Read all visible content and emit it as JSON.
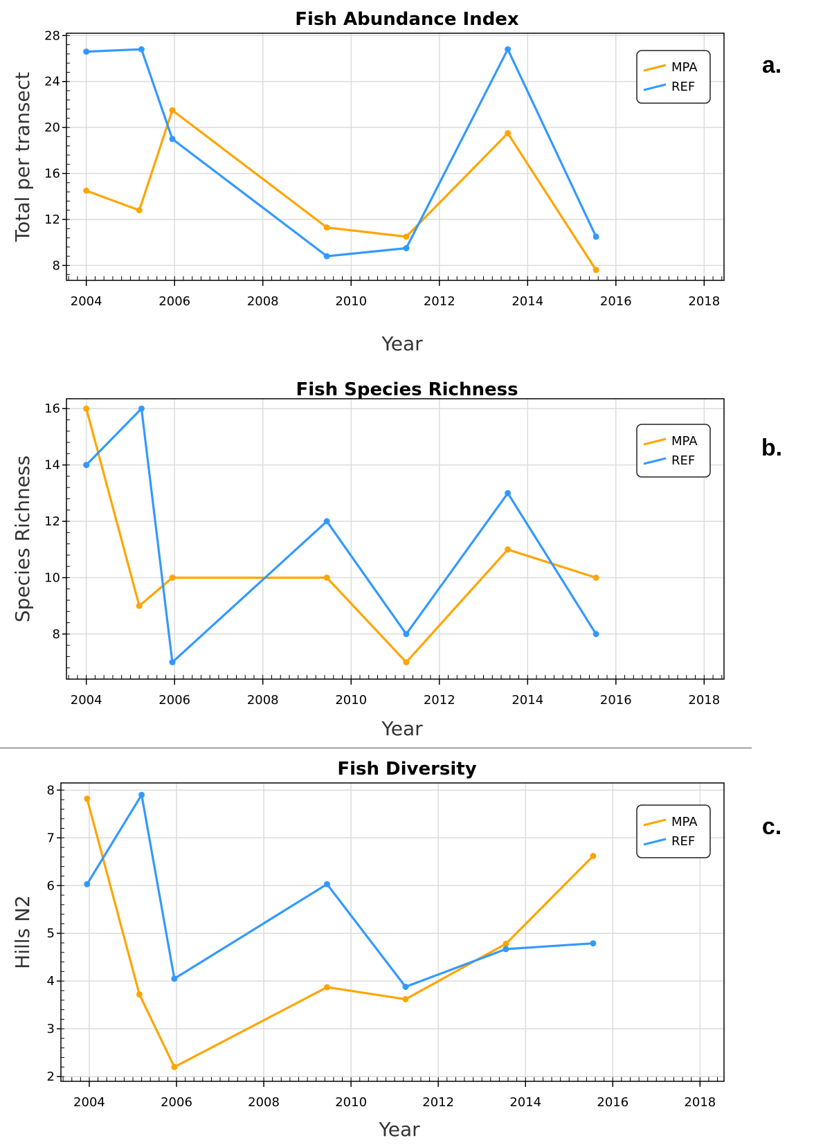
{
  "colors": {
    "mpa": "#FFA500",
    "ref": "#3399FF",
    "grid": "#DCDCDC"
  },
  "chart_data": [
    {
      "type": "line",
      "title": "Fish Abundance Index",
      "xlabel": "Year",
      "ylabel": "Total per transect",
      "panel_label": "a.",
      "xlim": [
        2003.55,
        2018.45
      ],
      "ylim": [
        6.7,
        28.2
      ],
      "xticks": [
        2004,
        2006,
        2008,
        2010,
        2012,
        2014,
        2016,
        2018
      ],
      "yticks": [
        8,
        12,
        16,
        20,
        24,
        28
      ],
      "legend": {
        "position": "top-right"
      },
      "grid": true,
      "series": [
        {
          "name": "MPA",
          "color": "#FFA500",
          "x": [
            2004.0,
            2005.2,
            2005.95,
            2009.45,
            2011.25,
            2013.55,
            2015.55
          ],
          "y": [
            14.5,
            12.8,
            21.5,
            11.3,
            10.5,
            19.5,
            7.6
          ]
        },
        {
          "name": "REF",
          "color": "#3399FF",
          "x": [
            2004.0,
            2005.25,
            2005.95,
            2009.45,
            2011.25,
            2013.55,
            2015.55
          ],
          "y": [
            26.6,
            26.8,
            19.0,
            8.8,
            9.5,
            26.8,
            10.5
          ]
        }
      ]
    },
    {
      "type": "line",
      "title": "Fish Species Richness",
      "xlabel": "Year",
      "ylabel": "Species Richness",
      "panel_label": "b.",
      "xlim": [
        2003.55,
        2018.45
      ],
      "ylim": [
        6.4,
        16.35
      ],
      "xticks": [
        2004,
        2006,
        2008,
        2010,
        2012,
        2014,
        2016,
        2018
      ],
      "yticks": [
        8,
        10,
        12,
        14,
        16
      ],
      "legend": {
        "position": "top-right"
      },
      "grid": true,
      "series": [
        {
          "name": "MPA",
          "color": "#FFA500",
          "x": [
            2004.0,
            2005.2,
            2005.95,
            2009.45,
            2011.25,
            2013.55,
            2015.55
          ],
          "y": [
            16,
            9,
            10,
            10,
            7,
            11,
            10
          ]
        },
        {
          "name": "REF",
          "color": "#3399FF",
          "x": [
            2004.0,
            2005.25,
            2005.95,
            2009.45,
            2011.25,
            2013.55,
            2015.55
          ],
          "y": [
            14,
            16,
            7,
            12,
            8,
            13,
            8
          ]
        }
      ]
    },
    {
      "type": "line",
      "title": "Fish Diversity",
      "xlabel": "Year",
      "ylabel": "Hills N2",
      "panel_label": "c.",
      "xlim": [
        2003.35,
        2018.55
      ],
      "ylim": [
        1.9,
        8.15
      ],
      "xticks": [
        2004,
        2006,
        2008,
        2010,
        2012,
        2014,
        2016,
        2018
      ],
      "yticks": [
        2,
        3,
        4,
        5,
        6,
        7,
        8
      ],
      "legend": {
        "position": "top-right"
      },
      "grid": true,
      "series": [
        {
          "name": "MPA",
          "color": "#FFA500",
          "x": [
            2003.95,
            2005.15,
            2005.95,
            2009.45,
            2011.25,
            2013.55,
            2015.55
          ],
          "y": [
            7.82,
            3.72,
            2.2,
            3.87,
            3.62,
            4.78,
            6.62
          ]
        },
        {
          "name": "REF",
          "color": "#3399FF",
          "x": [
            2003.95,
            2005.2,
            2005.95,
            2009.45,
            2011.25,
            2013.55,
            2015.55
          ],
          "y": [
            6.03,
            7.9,
            4.05,
            6.03,
            3.88,
            4.67,
            4.79
          ]
        }
      ]
    }
  ]
}
